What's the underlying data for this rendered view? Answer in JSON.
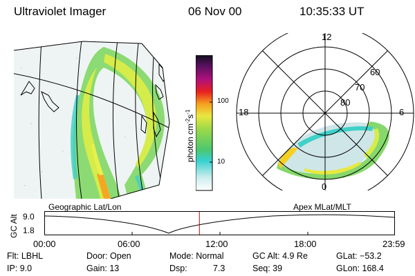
{
  "header": {
    "instrument": "Ultraviolet Imager",
    "date": "06 Nov 00",
    "time": "10:35:33 UT"
  },
  "colorbar": {
    "unit_label": "photon cm-2s-1",
    "ticks": [
      "100",
      "10"
    ]
  },
  "polar_plot": {
    "hour_labels": [
      "12",
      "18",
      "6",
      "0"
    ],
    "lat_labels": [
      "60",
      "70",
      "80"
    ]
  },
  "timeline": {
    "ylabel": "GC Alt",
    "yticks": [
      "9.0",
      "1.8"
    ],
    "left_caption": "Geographic Lat/Lon",
    "right_caption": "Apex MLat/MLT",
    "xticks": [
      "00:00",
      "06:00",
      "12:00",
      "18:00",
      "23:59"
    ],
    "marker_fraction_of_day": 0.4413,
    "marker_color": "#cc0000"
  },
  "info": {
    "filter": "Flt: LBHL",
    "door": "Door: Open",
    "mode": "Mode: Normal",
    "gc_alt": "GC Alt: 4.9 Re",
    "glat": "GLat: −53.2",
    "ip": "IP: 9.0",
    "gain": "Gain: 13",
    "dsp_label": "Dsp:",
    "dsp_value": "7.3",
    "seq": "Seq: 39",
    "glon": "GLon: 168.4"
  }
}
